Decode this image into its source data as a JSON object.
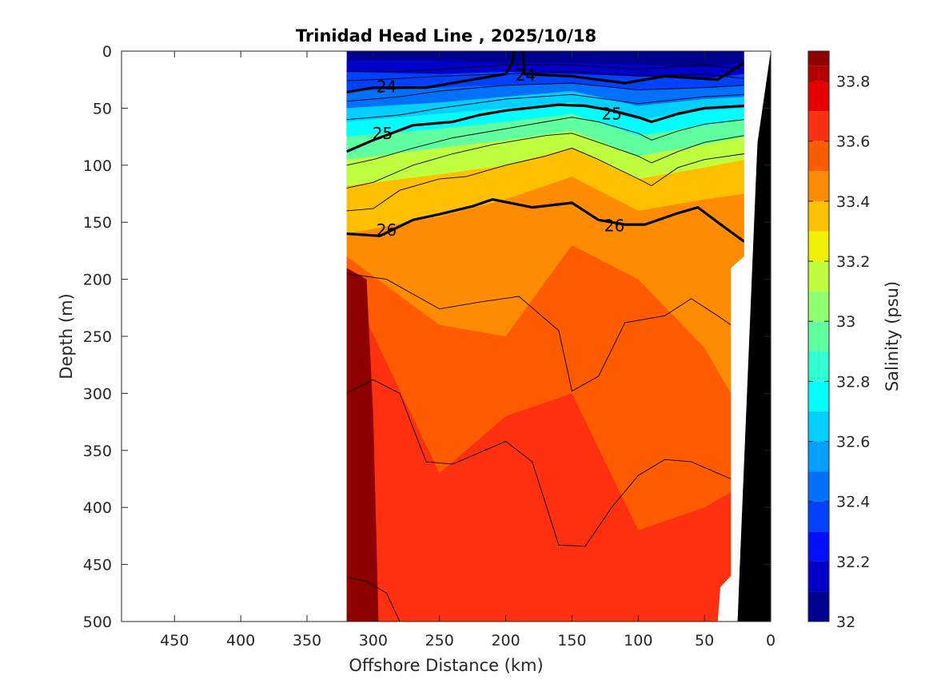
{
  "chart_data": {
    "type": "contour-section",
    "title": "Trinidad Head Line , 2025/10/18",
    "xlabel": "Offshore Distance (km)",
    "ylabel": "Depth (m)",
    "colorbar_label": "Salinity (psu)",
    "xlim": [
      490,
      0
    ],
    "ylim": [
      0,
      500
    ],
    "x_reversed": true,
    "y_reversed": true,
    "x_ticks": [
      450,
      400,
      350,
      300,
      250,
      200,
      150,
      100,
      50,
      0
    ],
    "y_ticks": [
      0,
      50,
      100,
      150,
      200,
      250,
      300,
      350,
      400,
      450,
      500
    ],
    "colorbar": {
      "min": 32.0,
      "max": 33.9,
      "ticks": [
        32,
        32.2,
        32.4,
        32.6,
        32.8,
        33,
        33.2,
        33.4,
        33.6,
        33.8
      ],
      "levels": [
        {
          "lo": 32.0,
          "color": "#00008f"
        },
        {
          "lo": 32.1,
          "color": "#0000c8"
        },
        {
          "lo": 32.2,
          "color": "#0010ff"
        },
        {
          "lo": 32.3,
          "color": "#0040ff"
        },
        {
          "lo": 32.4,
          "color": "#0070ff"
        },
        {
          "lo": 32.5,
          "color": "#00a0ff"
        },
        {
          "lo": 32.6,
          "color": "#00d0ff"
        },
        {
          "lo": 32.7,
          "color": "#00ffff"
        },
        {
          "lo": 32.8,
          "color": "#30ffd0"
        },
        {
          "lo": 32.9,
          "color": "#60ffa0"
        },
        {
          "lo": 33.0,
          "color": "#90ff70"
        },
        {
          "lo": 33.1,
          "color": "#c0ff40"
        },
        {
          "lo": 33.2,
          "color": "#f0f000"
        },
        {
          "lo": 33.3,
          "color": "#ffc000"
        },
        {
          "lo": 33.4,
          "color": "#ff8c00"
        },
        {
          "lo": 33.5,
          "color": "#ff5c00"
        },
        {
          "lo": 33.6,
          "color": "#ff3010"
        },
        {
          "lo": 33.7,
          "color": "#e60000"
        },
        {
          "lo": 33.8,
          "color": "#b40000"
        },
        {
          "lo": 33.85,
          "color": "#8f0000"
        }
      ]
    },
    "salinity_bands": [
      {
        "value": 32.15,
        "depth_by_x": [
          [
            320,
            8
          ],
          [
            250,
            8
          ],
          [
            200,
            10
          ],
          [
            150,
            10
          ],
          [
            100,
            12
          ],
          [
            50,
            14
          ],
          [
            20,
            10
          ]
        ]
      },
      {
        "value": 32.3,
        "depth_by_x": [
          [
            320,
            18
          ],
          [
            250,
            20
          ],
          [
            200,
            18
          ],
          [
            150,
            20
          ],
          [
            100,
            22
          ],
          [
            50,
            24
          ],
          [
            20,
            20
          ]
        ]
      },
      {
        "value": 32.45,
        "depth_by_x": [
          [
            320,
            35
          ],
          [
            250,
            32
          ],
          [
            200,
            30
          ],
          [
            150,
            28
          ],
          [
            100,
            34
          ],
          [
            50,
            32
          ],
          [
            20,
            30
          ]
        ]
      },
      {
        "value": 32.6,
        "depth_by_x": [
          [
            320,
            50
          ],
          [
            250,
            45
          ],
          [
            200,
            40
          ],
          [
            150,
            35
          ],
          [
            100,
            48
          ],
          [
            50,
            42
          ],
          [
            20,
            40
          ]
        ]
      },
      {
        "value": 32.75,
        "depth_by_x": [
          [
            320,
            62
          ],
          [
            250,
            55
          ],
          [
            200,
            50
          ],
          [
            150,
            45
          ],
          [
            100,
            60
          ],
          [
            50,
            52
          ],
          [
            20,
            50
          ]
        ]
      },
      {
        "value": 32.95,
        "depth_by_x": [
          [
            320,
            75
          ],
          [
            250,
            68
          ],
          [
            200,
            62
          ],
          [
            150,
            55
          ],
          [
            100,
            74
          ],
          [
            50,
            65
          ],
          [
            20,
            60
          ]
        ]
      },
      {
        "value": 33.15,
        "depth_by_x": [
          [
            320,
            95
          ],
          [
            250,
            85
          ],
          [
            200,
            78
          ],
          [
            150,
            70
          ],
          [
            100,
            92
          ],
          [
            50,
            82
          ],
          [
            20,
            75
          ]
        ]
      },
      {
        "value": 33.3,
        "depth_by_x": [
          [
            320,
            118
          ],
          [
            250,
            108
          ],
          [
            200,
            100
          ],
          [
            150,
            85
          ],
          [
            100,
            112
          ],
          [
            50,
            102
          ],
          [
            20,
            95
          ]
        ]
      },
      {
        "value": 33.45,
        "depth_by_x": [
          [
            320,
            160
          ],
          [
            250,
            145
          ],
          [
            200,
            130
          ],
          [
            150,
            110
          ],
          [
            100,
            140
          ],
          [
            50,
            130
          ],
          [
            20,
            125
          ]
        ]
      },
      {
        "value": 33.55,
        "depth_by_x": [
          [
            320,
            180
          ],
          [
            250,
            240
          ],
          [
            200,
            250
          ],
          [
            150,
            170
          ],
          [
            100,
            200
          ],
          [
            50,
            260
          ],
          [
            20,
            320
          ]
        ]
      },
      {
        "value": 33.65,
        "depth_by_x": [
          [
            320,
            200
          ],
          [
            250,
            370
          ],
          [
            200,
            320
          ],
          [
            150,
            300
          ],
          [
            100,
            420
          ],
          [
            50,
            400
          ],
          [
            20,
            380
          ]
        ]
      },
      {
        "value": 33.75,
        "depth_by_x": [
          [
            320,
            500
          ],
          [
            250,
            500
          ],
          [
            200,
            500
          ],
          [
            150,
            500
          ],
          [
            100,
            500
          ],
          [
            50,
            500
          ],
          [
            20,
            500
          ]
        ]
      }
    ],
    "density_contours_labeled": [
      {
        "label": "24",
        "points": [
          [
            320,
            36
          ],
          [
            300,
            32
          ],
          [
            260,
            32
          ],
          [
            230,
            26
          ],
          [
            200,
            20
          ],
          [
            195,
            10
          ],
          [
            194,
            0
          ]
        ],
        "label_at": [
          [
            290,
            31
          ],
          [
            185,
            21
          ]
        ]
      },
      {
        "label": "24",
        "points": [
          [
            187,
            0
          ],
          [
            186,
            20
          ],
          [
            150,
            22
          ],
          [
            110,
            28
          ],
          [
            80,
            22
          ],
          [
            40,
            25
          ],
          [
            20,
            10
          ]
        ],
        "label_at": []
      },
      {
        "label": "25",
        "points": [
          [
            320,
            88
          ],
          [
            300,
            78
          ],
          [
            270,
            65
          ],
          [
            240,
            62
          ],
          [
            220,
            56
          ],
          [
            200,
            52
          ],
          [
            160,
            47
          ],
          [
            140,
            48
          ],
          [
            120,
            52
          ],
          [
            100,
            58
          ],
          [
            90,
            62
          ],
          [
            70,
            55
          ],
          [
            50,
            50
          ],
          [
            20,
            48
          ]
        ],
        "label_at": [
          [
            293,
            72
          ],
          [
            120,
            55
          ]
        ]
      },
      {
        "label": "26",
        "points": [
          [
            320,
            160
          ],
          [
            295,
            162
          ],
          [
            270,
            148
          ],
          [
            250,
            143
          ],
          [
            225,
            136
          ],
          [
            210,
            130
          ],
          [
            180,
            137
          ],
          [
            150,
            133
          ],
          [
            130,
            148
          ],
          [
            110,
            152
          ],
          [
            95,
            152
          ],
          [
            70,
            142
          ],
          [
            55,
            137
          ],
          [
            40,
            150
          ],
          [
            20,
            167
          ]
        ],
        "label_at": [
          [
            290,
            157
          ],
          [
            118,
            153
          ]
        ]
      }
    ],
    "density_contours_thin": [
      [
        [
          320,
          18
        ],
        [
          280,
          18
        ],
        [
          250,
          16
        ],
        [
          200,
          12
        ],
        [
          150,
          12
        ],
        [
          100,
          16
        ],
        [
          50,
          12
        ],
        [
          20,
          16
        ]
      ],
      [
        [
          320,
          26
        ],
        [
          280,
          24
        ],
        [
          250,
          22
        ],
        [
          200,
          20
        ],
        [
          150,
          18
        ],
        [
          100,
          22
        ],
        [
          50,
          20
        ],
        [
          20,
          24
        ]
      ],
      [
        [
          320,
          44
        ],
        [
          280,
          40
        ],
        [
          250,
          35
        ],
        [
          200,
          30
        ],
        [
          150,
          28
        ],
        [
          100,
          34
        ],
        [
          50,
          32
        ],
        [
          20,
          30
        ]
      ],
      [
        [
          320,
          60
        ],
        [
          280,
          56
        ],
        [
          250,
          50
        ],
        [
          200,
          42
        ],
        [
          150,
          38
        ],
        [
          100,
          46
        ],
        [
          50,
          40
        ],
        [
          20,
          38
        ]
      ],
      [
        [
          320,
          100
        ],
        [
          300,
          95
        ],
        [
          270,
          85
        ],
        [
          240,
          76
        ],
        [
          210,
          70
        ],
        [
          170,
          62
        ],
        [
          150,
          58
        ],
        [
          130,
          62
        ],
        [
          100,
          72
        ],
        [
          90,
          78
        ],
        [
          70,
          70
        ],
        [
          50,
          64
        ],
        [
          20,
          60
        ]
      ],
      [
        [
          320,
          120
        ],
        [
          300,
          115
        ],
        [
          270,
          100
        ],
        [
          240,
          90
        ],
        [
          210,
          82
        ],
        [
          170,
          74
        ],
        [
          150,
          72
        ],
        [
          130,
          80
        ],
        [
          100,
          92
        ],
        [
          90,
          98
        ],
        [
          70,
          88
        ],
        [
          50,
          80
        ],
        [
          20,
          74
        ]
      ],
      [
        [
          320,
          140
        ],
        [
          300,
          138
        ],
        [
          280,
          122
        ],
        [
          250,
          112
        ],
        [
          230,
          110
        ],
        [
          200,
          100
        ],
        [
          170,
          92
        ],
        [
          150,
          85
        ],
        [
          130,
          95
        ],
        [
          100,
          112
        ],
        [
          90,
          118
        ],
        [
          70,
          102
        ],
        [
          50,
          95
        ],
        [
          20,
          90
        ]
      ],
      [
        [
          320,
          195
        ],
        [
          290,
          200
        ],
        [
          250,
          226
        ],
        [
          220,
          220
        ],
        [
          190,
          215
        ],
        [
          160,
          245
        ],
        [
          150,
          298
        ],
        [
          130,
          285
        ],
        [
          110,
          238
        ],
        [
          80,
          232
        ],
        [
          60,
          217
        ],
        [
          40,
          232
        ],
        [
          30,
          240
        ]
      ],
      [
        [
          320,
          300
        ],
        [
          300,
          288
        ],
        [
          280,
          300
        ],
        [
          260,
          360
        ],
        [
          240,
          362
        ],
        [
          200,
          342
        ],
        [
          180,
          360
        ],
        [
          160,
          433
        ],
        [
          140,
          434
        ],
        [
          120,
          400
        ],
        [
          100,
          372
        ],
        [
          80,
          358
        ],
        [
          60,
          360
        ],
        [
          30,
          375
        ]
      ],
      [
        [
          320,
          461
        ],
        [
          305,
          465
        ],
        [
          290,
          475
        ],
        [
          280,
          500
        ]
      ]
    ],
    "bathymetry": [
      [
        25,
        500
      ],
      [
        24,
        470
      ],
      [
        20,
        320
      ],
      [
        10,
        80
      ],
      [
        0,
        0
      ]
    ]
  }
}
